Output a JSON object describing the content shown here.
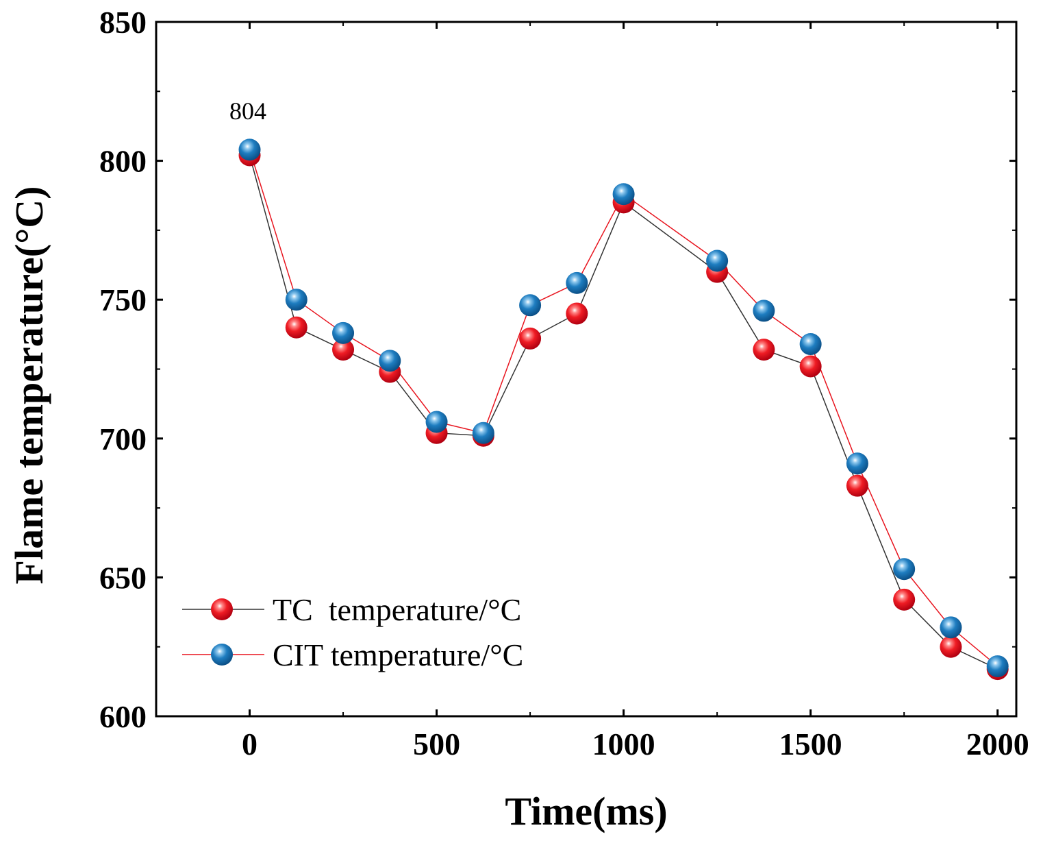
{
  "chart_data": {
    "type": "line",
    "xlabel": "Time(ms)",
    "ylabel": "Flame temperature(°C)",
    "xlim": [
      -250,
      2050
    ],
    "ylim": [
      600,
      850
    ],
    "xticks": [
      0,
      500,
      1000,
      1500,
      2000
    ],
    "yticks": [
      600,
      650,
      700,
      750,
      800,
      850
    ],
    "x": [
      0,
      125,
      250,
      375,
      500,
      625,
      750,
      875,
      1000,
      1250,
      1375,
      1500,
      1625,
      1750,
      1875,
      2000
    ],
    "series": [
      {
        "name": "TC  temperature/°C",
        "line_color": "#333333",
        "marker_color": "#e8141e",
        "values": [
          802,
          740,
          732,
          724,
          702,
          701,
          736,
          745,
          785,
          760,
          732,
          726,
          683,
          642,
          625,
          617
        ]
      },
      {
        "name": "CIT temperature/°C",
        "line_color": "#e8141e",
        "marker_color": "#1e78b8",
        "values": [
          804,
          750,
          738,
          728,
          706,
          702,
          748,
          756,
          788,
          764,
          746,
          734,
          691,
          653,
          632,
          618
        ]
      }
    ],
    "annotations": [
      {
        "text": "804",
        "x": 0,
        "y": 804
      }
    ],
    "legend": "bottom-left",
    "grid": false
  }
}
